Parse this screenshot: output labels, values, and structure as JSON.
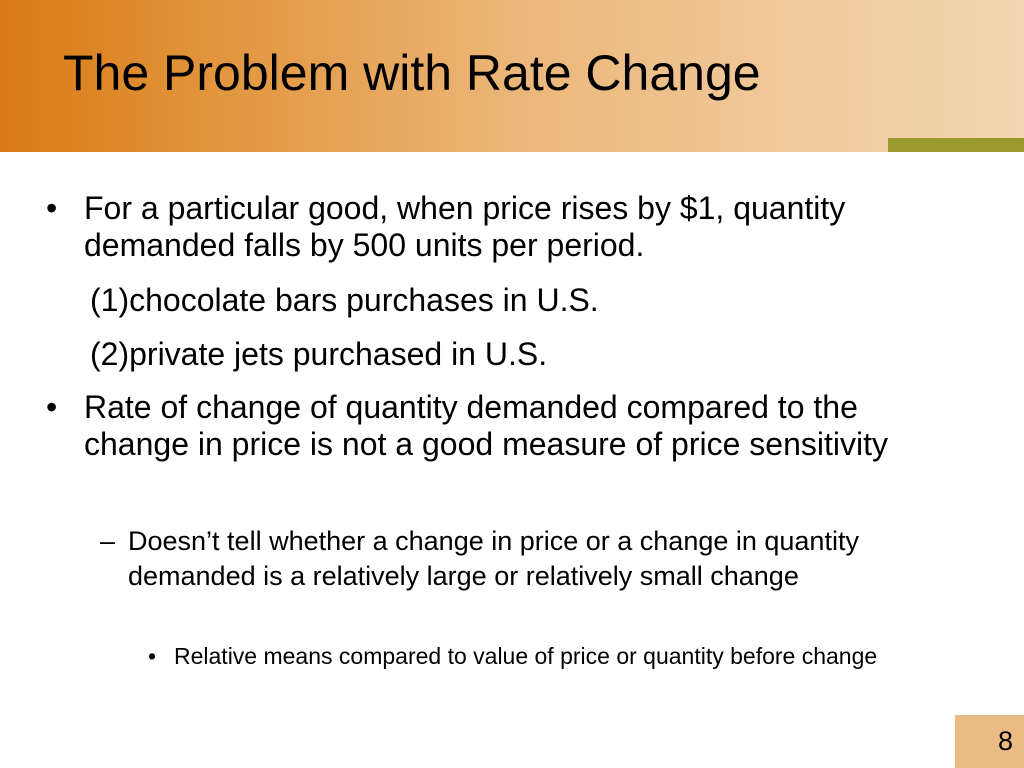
{
  "slide": {
    "title": "The Problem with Rate Change",
    "page_number": "8",
    "bullets": [
      {
        "symbol": "•",
        "text": "For a particular good, when price rises by $1, quantity demanded falls by 500 units per period."
      },
      {
        "symbol": "•",
        "text": "Rate of change of quantity demanded compared to the change in price is not a good measure of price sensitivity"
      }
    ],
    "examples": [
      "(1)chocolate bars purchases in U.S.",
      "(2)private jets purchased in U.S."
    ],
    "sub_bullet": {
      "symbol": "–",
      "text": "Doesn’t tell whether a change in price or a change in quantity demanded is a relatively large or relatively small change"
    },
    "sub_sub_bullet": {
      "symbol": "•",
      "text": "Relative means compared to value of price or quantity before change"
    }
  },
  "colors": {
    "title_band_start": "#d97a14",
    "title_band_end": "#f3d6b2",
    "accent_bar": "#9c9a2c",
    "page_box": "#eabb83"
  }
}
